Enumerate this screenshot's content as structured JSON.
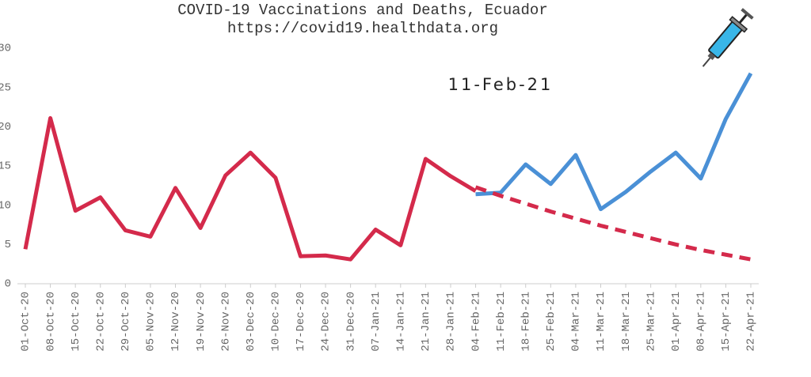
{
  "chart_data": {
    "type": "line",
    "title": "COVID-19 Vaccinations and Deaths, Ecuador",
    "subtitle": "https://covid19.healthdata.org",
    "annotation": "11-Feb-21",
    "categories": [
      "01-Oct-20",
      "08-Oct-20",
      "15-Oct-20",
      "22-Oct-20",
      "29-Oct-20",
      "05-Nov-20",
      "12-Nov-20",
      "19-Nov-20",
      "26-Nov-20",
      "03-Dec-20",
      "10-Dec-20",
      "17-Dec-20",
      "24-Dec-20",
      "31-Dec-20",
      "07-Jan-21",
      "14-Jan-21",
      "21-Jan-21",
      "28-Jan-21",
      "04-Feb-21",
      "11-Feb-21",
      "18-Feb-21",
      "25-Feb-21",
      "04-Mar-21",
      "11-Mar-21",
      "18-Mar-21",
      "25-Mar-21",
      "01-Apr-21",
      "08-Apr-21",
      "15-Apr-21",
      "22-Apr-21"
    ],
    "series": [
      {
        "color": "#d42a4b",
        "style": "solid",
        "values": [
          4.4,
          21.1,
          9.3,
          11,
          6.8,
          6,
          12.2,
          7.1,
          13.8,
          16.7,
          13.5,
          3.5,
          3.6,
          3.1,
          6.9,
          4.9,
          15.9,
          13.7,
          11.8,
          null,
          null,
          null,
          null,
          null,
          null,
          null,
          null,
          null,
          null,
          null
        ]
      },
      {
        "color": "#4a90d6",
        "style": "solid",
        "values": [
          null,
          null,
          null,
          null,
          null,
          null,
          null,
          null,
          null,
          null,
          null,
          null,
          null,
          null,
          null,
          null,
          null,
          null,
          11.4,
          11.6,
          15.2,
          12.7,
          16.4,
          9.5,
          11.7,
          14.3,
          16.7,
          13.4,
          21,
          26.8
        ]
      },
      {
        "color": "#d42a4b",
        "style": "dashed",
        "values": [
          null,
          null,
          null,
          null,
          null,
          null,
          null,
          null,
          null,
          null,
          null,
          null,
          null,
          null,
          null,
          null,
          null,
          null,
          12.3,
          11.2,
          10.2,
          9.2,
          8.3,
          7.4,
          6.6,
          5.8,
          5,
          4.3,
          3.7,
          3.1
        ]
      }
    ],
    "ylim": [
      0,
      30
    ],
    "yticks": [
      0,
      5,
      10,
      15,
      20,
      25,
      30
    ],
    "grid": false
  }
}
